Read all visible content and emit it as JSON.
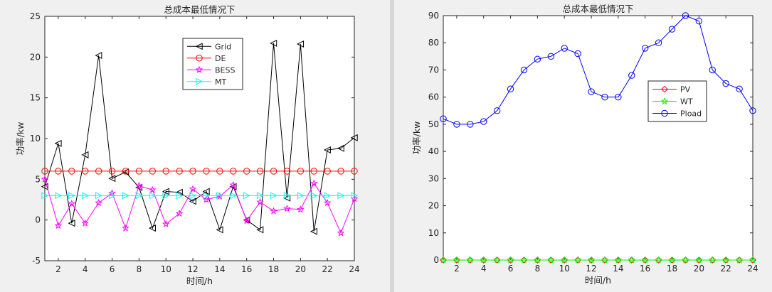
{
  "chart_data": [
    {
      "type": "line",
      "title": "总成本最低情况下",
      "xlabel": "时间/h",
      "ylabel": "功率/kw",
      "xlim": [
        1,
        24
      ],
      "ylim": [
        -5,
        25
      ],
      "xticks": [
        2,
        4,
        6,
        8,
        10,
        12,
        14,
        16,
        18,
        20,
        22,
        24
      ],
      "yticks": [
        -5,
        0,
        5,
        10,
        15,
        20,
        25
      ],
      "grid": false,
      "legend_position": "top-right-inside",
      "x": [
        1,
        2,
        3,
        4,
        5,
        6,
        7,
        8,
        9,
        10,
        11,
        12,
        13,
        14,
        15,
        16,
        17,
        18,
        19,
        20,
        21,
        22,
        23,
        24
      ],
      "series": [
        {
          "name": "Grid",
          "color": "#000000",
          "marker": "triangle-left",
          "values": [
            4.1,
            9.4,
            -0.4,
            8.0,
            20.2,
            5.1,
            5.9,
            4.0,
            -1.0,
            3.5,
            3.4,
            2.3,
            3.5,
            -1.2,
            4.1,
            0.0,
            -1.2,
            21.7,
            2.7,
            21.6,
            -1.4,
            8.6,
            8.8,
            10.1
          ]
        },
        {
          "name": "DE",
          "color": "#ff0000",
          "marker": "circle",
          "values": [
            6,
            6,
            6,
            6,
            6,
            6,
            6,
            6,
            6,
            6,
            6,
            6,
            6,
            6,
            6,
            6,
            6,
            6,
            6,
            6,
            6,
            6,
            6,
            6
          ]
        },
        {
          "name": "BESS",
          "color": "#ff00ff",
          "marker": "star",
          "values": [
            5.0,
            -0.7,
            2.0,
            -0.4,
            2.1,
            3.3,
            -1.0,
            4.2,
            3.7,
            -0.5,
            0.8,
            3.8,
            2.5,
            2.9,
            4.3,
            -0.1,
            2.2,
            1.1,
            1.4,
            1.3,
            4.5,
            2.1,
            -1.6,
            2.6
          ]
        },
        {
          "name": "MT",
          "color": "#00ffff",
          "marker": "triangle-right",
          "values": [
            3,
            3,
            3,
            3,
            3,
            3,
            3,
            3,
            3,
            3,
            3,
            3,
            3,
            3,
            3,
            3,
            3,
            3,
            3,
            3,
            3,
            3,
            3,
            3
          ]
        }
      ]
    },
    {
      "type": "line",
      "title": "总成本最低情况下",
      "xlabel": "时间/h",
      "ylabel": "功率/kw",
      "xlim": [
        1,
        24
      ],
      "ylim": [
        0,
        90
      ],
      "xticks": [
        2,
        4,
        6,
        8,
        10,
        12,
        14,
        16,
        18,
        20,
        22,
        24
      ],
      "yticks": [
        0,
        10,
        20,
        30,
        40,
        50,
        60,
        70,
        80,
        90
      ],
      "grid": false,
      "legend_position": "right-inside",
      "x": [
        1,
        2,
        3,
        4,
        5,
        6,
        7,
        8,
        9,
        10,
        11,
        12,
        13,
        14,
        15,
        16,
        17,
        18,
        19,
        20,
        21,
        22,
        23,
        24
      ],
      "series": [
        {
          "name": "PV",
          "color": "#ff0000",
          "marker": "diamond",
          "values": [
            0,
            0,
            0,
            0,
            0,
            0,
            0,
            0,
            0,
            0,
            0,
            0,
            0,
            0,
            0,
            0,
            0,
            0,
            0,
            0,
            0,
            0,
            0,
            0
          ]
        },
        {
          "name": "WT",
          "color": "#00ff00",
          "marker": "star",
          "values": [
            0,
            0,
            0,
            0,
            0,
            0,
            0,
            0,
            0,
            0,
            0,
            0,
            0,
            0,
            0,
            0,
            0,
            0,
            0,
            0,
            0,
            0,
            0,
            0
          ]
        },
        {
          "name": "Pload",
          "color": "#0000ff",
          "marker": "circle",
          "values": [
            52,
            50,
            50,
            51,
            55,
            63,
            70,
            74,
            75,
            78,
            76,
            62,
            60,
            60,
            68,
            78,
            80,
            85,
            90,
            88,
            70,
            65,
            63,
            55
          ]
        }
      ]
    }
  ]
}
